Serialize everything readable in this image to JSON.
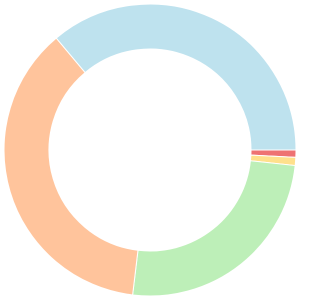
{
  "chart_data": {
    "type": "doughnut",
    "values": [
      0.8,
      0.9,
      25.2,
      37.0,
      36.1
    ],
    "colors": [
      "#ee7272",
      "#ffe08c",
      "#bdefb8",
      "#ffc49c",
      "#bee2ee"
    ]
  }
}
